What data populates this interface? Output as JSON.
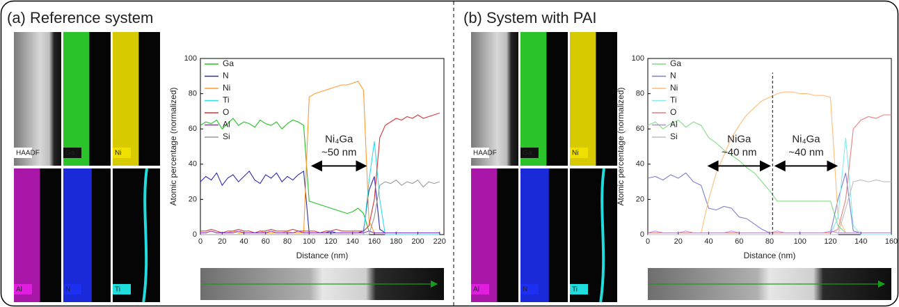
{
  "chart_data": [
    {
      "type": "line",
      "title": "(a) Reference system",
      "x_label": "Distance (nm)",
      "y_label": "Atomic percentage (normalized)",
      "maps": [
        "HAADF",
        "Ga",
        "Ni",
        "Al",
        "N",
        "Ti"
      ],
      "xlim": [
        0,
        224
      ],
      "xticks": [
        0,
        20,
        40,
        60,
        80,
        100,
        120,
        140,
        160,
        180,
        200,
        220
      ],
      "ylim": [
        0,
        100
      ],
      "yticks": [
        0,
        20,
        40,
        60,
        80,
        100
      ],
      "x": [
        0,
        5,
        10,
        15,
        20,
        25,
        30,
        35,
        40,
        45,
        50,
        55,
        60,
        65,
        70,
        75,
        80,
        85,
        90,
        95,
        100,
        105,
        110,
        115,
        120,
        125,
        130,
        135,
        140,
        145,
        150,
        155,
        160,
        165,
        170,
        175,
        180,
        185,
        190,
        195,
        200,
        205,
        210,
        215,
        220
      ],
      "series": [
        {
          "name": "Ga",
          "color": "#22c322",
          "values": [
            62,
            64,
            63,
            65,
            60,
            63,
            66,
            62,
            64,
            63,
            61,
            65,
            63,
            62,
            64,
            60,
            63,
            65,
            64,
            62,
            19,
            18,
            17,
            16,
            15,
            14,
            13,
            12,
            13,
            15,
            12,
            2,
            1,
            1,
            1,
            1,
            1,
            1,
            1,
            1,
            1,
            1,
            1,
            1,
            1
          ]
        },
        {
          "name": "N",
          "color": "#2b2bb0",
          "values": [
            30,
            33,
            31,
            35,
            28,
            32,
            34,
            30,
            33,
            36,
            31,
            29,
            34,
            32,
            35,
            30,
            33,
            31,
            34,
            36,
            1,
            1,
            1,
            1,
            1,
            1,
            1,
            1,
            1,
            1,
            2,
            25,
            33,
            3,
            1,
            1,
            1,
            1,
            1,
            1,
            1,
            1,
            1,
            1,
            1
          ]
        },
        {
          "name": "Ni",
          "color": "#ff9a2e",
          "values": [
            1,
            1,
            2,
            1,
            1,
            1,
            2,
            1,
            1,
            1,
            1,
            2,
            1,
            1,
            1,
            1,
            2,
            1,
            1,
            1,
            78,
            80,
            81,
            82,
            83,
            84,
            85,
            85,
            86,
            87,
            82,
            8,
            1,
            1,
            1,
            1,
            1,
            1,
            1,
            1,
            1,
            1,
            1,
            1,
            1
          ]
        },
        {
          "name": "Ti",
          "color": "#2fdbe6",
          "values": [
            0,
            0,
            0,
            0,
            0,
            0,
            0,
            0,
            0,
            0,
            0,
            0,
            0,
            0,
            0,
            0,
            0,
            0,
            0,
            0,
            0,
            0,
            0,
            0,
            0,
            0,
            0,
            0,
            0,
            0,
            0,
            30,
            53,
            20,
            0,
            0,
            0,
            0,
            0,
            0,
            0,
            0,
            0,
            0,
            0
          ]
        },
        {
          "name": "O",
          "color": "#d93434",
          "values": [
            2,
            2,
            3,
            2,
            1,
            2,
            2,
            3,
            2,
            2,
            1,
            2,
            2,
            3,
            2,
            2,
            2,
            3,
            2,
            2,
            2,
            2,
            1,
            2,
            2,
            3,
            2,
            2,
            2,
            2,
            2,
            5,
            20,
            55,
            62,
            64,
            66,
            65,
            67,
            66,
            68,
            66,
            67,
            68,
            69
          ]
        },
        {
          "name": "Al",
          "color": "#8a35c8",
          "values": [
            1,
            1,
            2,
            1,
            1,
            1,
            1,
            2,
            1,
            1,
            1,
            1,
            1,
            2,
            1,
            1,
            1,
            1,
            2,
            1,
            1,
            1,
            1,
            1,
            2,
            1,
            1,
            1,
            1,
            1,
            1,
            2,
            1,
            1,
            1,
            1,
            1,
            1,
            1,
            1,
            1,
            1,
            1,
            1,
            1
          ]
        },
        {
          "name": "Si",
          "color": "#9a9a9a",
          "values": [
            0,
            0,
            0,
            0,
            0,
            0,
            0,
            0,
            0,
            0,
            0,
            0,
            0,
            0,
            0,
            0,
            0,
            0,
            0,
            0,
            0,
            0,
            0,
            0,
            0,
            0,
            0,
            0,
            0,
            0,
            0,
            0,
            10,
            28,
            30,
            29,
            31,
            28,
            30,
            29,
            31,
            27,
            30,
            29,
            30
          ]
        }
      ],
      "annotations": [
        {
          "text": [
            "Ni₄Ga",
            "~50 nm"
          ],
          "x_range": [
            103,
            152
          ]
        }
      ]
    },
    {
      "type": "line",
      "title": "(b) System with PAI",
      "x_label": "Distance (nm)",
      "y_label": "Atomic percentage (normalized)",
      "maps": [
        "HAADF",
        "Ga",
        "Ni",
        "Al",
        "N",
        "Ti"
      ],
      "xlim": [
        0,
        160
      ],
      "xticks": [
        0,
        20,
        40,
        60,
        80,
        100,
        120,
        140,
        160
      ],
      "ylim": [
        0,
        100
      ],
      "yticks": [
        0,
        20,
        40,
        60,
        80,
        100
      ],
      "x": [
        0,
        5,
        10,
        15,
        20,
        25,
        30,
        35,
        40,
        45,
        50,
        55,
        60,
        65,
        70,
        75,
        80,
        85,
        90,
        95,
        100,
        105,
        110,
        115,
        120,
        125,
        130,
        135,
        140,
        145,
        150,
        155,
        160
      ],
      "series": [
        {
          "name": "Ga",
          "color": "#7fdc7f",
          "values": [
            62,
            64,
            60,
            63,
            65,
            61,
            64,
            62,
            55,
            52,
            48,
            45,
            42,
            38,
            35,
            30,
            25,
            19,
            19,
            19,
            19,
            19,
            19,
            19,
            19,
            5,
            1,
            1,
            1,
            1,
            1,
            1,
            1
          ]
        },
        {
          "name": "N",
          "color": "#7d7dd0",
          "values": [
            32,
            33,
            31,
            34,
            32,
            35,
            30,
            28,
            15,
            14,
            16,
            15,
            10,
            9,
            6,
            3,
            1,
            1,
            1,
            1,
            1,
            1,
            1,
            1,
            1,
            20,
            35,
            2,
            1,
            1,
            1,
            1,
            1
          ]
        },
        {
          "name": "Ni",
          "color": "#ffbc76",
          "values": [
            1,
            1,
            1,
            1,
            1,
            1,
            1,
            1,
            20,
            35,
            45,
            55,
            62,
            68,
            72,
            76,
            78,
            80,
            81,
            81,
            80,
            80,
            79,
            79,
            78,
            10,
            1,
            1,
            1,
            1,
            1,
            1,
            1
          ]
        },
        {
          "name": "Ti",
          "color": "#86e9ef",
          "values": [
            0,
            0,
            0,
            0,
            0,
            0,
            0,
            0,
            0,
            0,
            0,
            0,
            0,
            0,
            0,
            0,
            0,
            0,
            0,
            0,
            0,
            0,
            0,
            0,
            0,
            10,
            55,
            5,
            0,
            0,
            0,
            0,
            0
          ]
        },
        {
          "name": "O",
          "color": "#e67f7f",
          "values": [
            1,
            1,
            1,
            1,
            1,
            1,
            1,
            1,
            1,
            1,
            1,
            1,
            1,
            1,
            1,
            1,
            1,
            1,
            1,
            1,
            1,
            1,
            1,
            1,
            1,
            3,
            20,
            60,
            65,
            67,
            66,
            68,
            68
          ]
        },
        {
          "name": "Al",
          "color": "#b688dc",
          "values": [
            1,
            2,
            1,
            1,
            1,
            2,
            1,
            1,
            1,
            1,
            1,
            2,
            1,
            1,
            1,
            1,
            1,
            2,
            1,
            1,
            1,
            1,
            1,
            1,
            2,
            1,
            1,
            1,
            1,
            1,
            1,
            1,
            1
          ]
        },
        {
          "name": "Si",
          "color": "#bdbdbd",
          "values": [
            0,
            0,
            0,
            0,
            0,
            0,
            0,
            0,
            0,
            0,
            0,
            0,
            0,
            0,
            0,
            0,
            0,
            0,
            0,
            0,
            0,
            0,
            0,
            0,
            0,
            0,
            15,
            30,
            31,
            30,
            31,
            30,
            30
          ]
        }
      ],
      "boundary": 82,
      "annotations": [
        {
          "text": [
            "NiGa",
            "~40 nm"
          ],
          "x_range": [
            40,
            80
          ]
        },
        {
          "text": [
            "Ni₄Ga",
            "~40 nm"
          ],
          "x_range": [
            84,
            124
          ]
        }
      ]
    }
  ]
}
